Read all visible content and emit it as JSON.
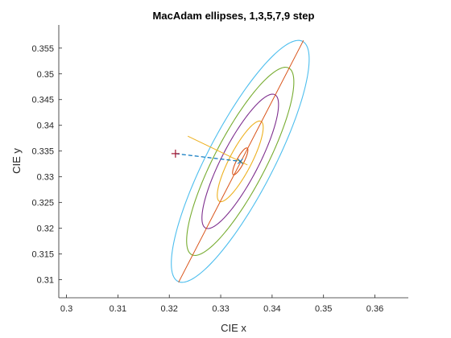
{
  "chart_data": {
    "type": "scatter",
    "title": "MacAdam ellipses, 1,3,5,7,9 step",
    "xlabel": "CIE x",
    "ylabel": "CIE y",
    "xlim": [
      0.2985,
      0.3665
    ],
    "ylim": [
      0.3065,
      0.3595
    ],
    "xticks": [
      "0.3",
      "0.31",
      "0.32",
      "0.33",
      "0.34",
      "0.35",
      "0.36"
    ],
    "yticks": [
      "0.31",
      "0.315",
      "0.32",
      "0.325",
      "0.33",
      "0.335",
      "0.34",
      "0.345",
      "0.35",
      "0.355"
    ],
    "grid": false,
    "center": [
      0.3338,
      0.333
    ],
    "ellipses": [
      {
        "step": 1,
        "color": "#d95319",
        "semi_major": 0.00292,
        "semi_minor": 0.000715,
        "angle_deg": 62.5
      },
      {
        "step": 3,
        "color": "#edb120",
        "semi_major": 0.00876,
        "semi_minor": 0.002145,
        "angle_deg": 62.5
      },
      {
        "step": 5,
        "color": "#7e2f8e",
        "semi_major": 0.0146,
        "semi_minor": 0.003575,
        "angle_deg": 62.5
      },
      {
        "step": 7,
        "color": "#77ac30",
        "semi_major": 0.02044,
        "semi_minor": 0.005005,
        "angle_deg": 62.5
      },
      {
        "step": 9,
        "color": "#4dbeee",
        "semi_major": 0.02628,
        "semi_minor": 0.006435,
        "angle_deg": 62.5
      }
    ],
    "major_axis_line": {
      "color": "#d95319",
      "from": [
        0.3218,
        0.3095
      ],
      "to": [
        0.3461,
        0.3565
      ]
    },
    "minor_axis_line": {
      "color": "#edb120",
      "from": [
        0.3236,
        0.3379
      ],
      "to": [
        0.3352,
        0.3323
      ]
    },
    "reference_point": {
      "marker": "+",
      "color": "#a2142f",
      "x": 0.3212,
      "y": 0.3345
    },
    "target_point": {
      "marker": "x",
      "color": "#0072bd",
      "x": 0.3338,
      "y": 0.333
    },
    "dashed_line": {
      "color": "#0072bd",
      "from": [
        0.3212,
        0.3345
      ],
      "to": [
        0.3338,
        0.333
      ]
    }
  }
}
